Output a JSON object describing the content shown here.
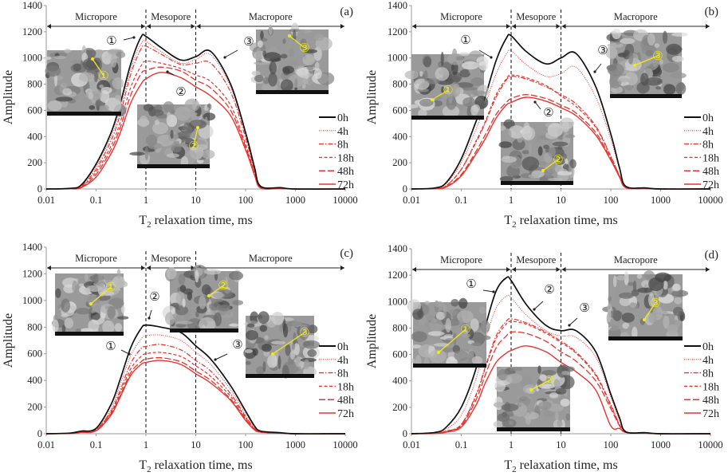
{
  "colors": {
    "control": "#111111",
    "treated": "#e8332f",
    "inset_marker": "#f2e81c",
    "axis": "#888888"
  },
  "chart_data": [
    {
      "type": "line",
      "panel_label": "(a)",
      "xscale": "log",
      "xlim": [
        0.01,
        10000
      ],
      "ylim": [
        0,
        1400
      ],
      "xticks": [
        "0.01",
        "0.1",
        "1",
        "10",
        "100",
        "1000",
        "10000"
      ],
      "yticks": [
        "0",
        "200",
        "400",
        "600",
        "800",
        "1000",
        "1200",
        "1400"
      ],
      "xlabel": {
        "main": "T",
        "sub": "2",
        "rest": " relaxation time, ms"
      },
      "ylabel": "Amplitude",
      "regions": [
        {
          "label": "Micropore",
          "from": 0.01,
          "to": 1
        },
        {
          "label": "Mesopore",
          "from": 1,
          "to": 10
        },
        {
          "label": "Macropore",
          "from": 10,
          "to": 10000
        }
      ],
      "annotations": [
        "①",
        "②",
        "③"
      ],
      "inset_labels": [
        "①",
        "②",
        "③"
      ],
      "legend": "right",
      "x": [
        0.01,
        0.03,
        0.05,
        0.1,
        0.2,
        0.3,
        0.5,
        0.8,
        1,
        2,
        5,
        10,
        20,
        50,
        100,
        150,
        200,
        500,
        1000,
        10000
      ],
      "series": [
        {
          "name": "0h",
          "values": [
            0,
            5,
            30,
            190,
            430,
            640,
            960,
            1160,
            1165,
            1080,
            985,
            1010,
            1050,
            800,
            430,
            170,
            20,
            10,
            0,
            0
          ]
        },
        {
          "name": "4h",
          "values": [
            0,
            4,
            25,
            170,
            400,
            600,
            920,
            1110,
            1125,
            1050,
            960,
            990,
            1025,
            780,
            415,
            160,
            18,
            8,
            0,
            0
          ]
        },
        {
          "name": "8h",
          "values": [
            0,
            3,
            20,
            150,
            370,
            560,
            880,
            1070,
            1090,
            1030,
            950,
            960,
            960,
            740,
            390,
            150,
            15,
            6,
            0,
            0
          ]
        },
        {
          "name": "18h",
          "values": [
            0,
            2,
            15,
            130,
            330,
            500,
            780,
            940,
            975,
            960,
            920,
            870,
            820,
            640,
            340,
            130,
            12,
            5,
            0,
            0
          ]
        },
        {
          "name": "48h",
          "values": [
            0,
            2,
            12,
            110,
            300,
            460,
            720,
            880,
            905,
            930,
            900,
            830,
            770,
            600,
            320,
            120,
            10,
            4,
            0,
            0
          ]
        },
        {
          "name": "72h",
          "values": [
            0,
            1,
            10,
            90,
            270,
            420,
            660,
            800,
            840,
            890,
            850,
            780,
            710,
            560,
            300,
            110,
            8,
            3,
            0,
            0
          ]
        }
      ]
    },
    {
      "type": "line",
      "panel_label": "(b)",
      "xscale": "log",
      "xlim": [
        0.01,
        10000
      ],
      "ylim": [
        0,
        1400
      ],
      "xticks": [
        "0.01",
        "0.1",
        "1",
        "10",
        "100",
        "1000",
        "10000"
      ],
      "yticks": [
        "0",
        "200",
        "400",
        "600",
        "800",
        "1000",
        "1200",
        "1400"
      ],
      "xlabel": {
        "main": "T",
        "sub": "2",
        "rest": " relaxation time, ms"
      },
      "ylabel": "Amplitude",
      "regions": [
        {
          "label": "Micropore",
          "from": 0.01,
          "to": 1
        },
        {
          "label": "Mesopore",
          "from": 1,
          "to": 10
        },
        {
          "label": "Macropore",
          "from": 10,
          "to": 10000
        }
      ],
      "annotations": [
        "①",
        "②",
        "③"
      ],
      "inset_labels": [
        "①",
        "②",
        "③"
      ],
      "legend": "right",
      "x": [
        0.01,
        0.03,
        0.05,
        0.1,
        0.2,
        0.3,
        0.5,
        0.8,
        1,
        2,
        5,
        10,
        20,
        50,
        100,
        150,
        200,
        500,
        1000,
        10000
      ],
      "series": [
        {
          "name": "0h",
          "values": [
            0,
            8,
            50,
            230,
            520,
            700,
            980,
            1150,
            1170,
            1050,
            955,
            1000,
            1035,
            780,
            420,
            160,
            20,
            8,
            0,
            0
          ]
        },
        {
          "name": "4h",
          "values": [
            0,
            6,
            40,
            200,
            460,
            640,
            880,
            1030,
            1055,
            950,
            860,
            880,
            930,
            700,
            380,
            150,
            18,
            6,
            0,
            0
          ]
        },
        {
          "name": "8h",
          "values": [
            0,
            4,
            25,
            150,
            360,
            500,
            700,
            830,
            860,
            840,
            780,
            720,
            650,
            480,
            250,
            100,
            12,
            4,
            0,
            0
          ]
        },
        {
          "name": "18h",
          "values": [
            0,
            4,
            25,
            150,
            370,
            510,
            720,
            840,
            870,
            850,
            790,
            710,
            630,
            470,
            245,
            100,
            12,
            4,
            0,
            0
          ]
        },
        {
          "name": "48h",
          "values": [
            0,
            3,
            18,
            110,
            290,
            410,
            570,
            660,
            690,
            720,
            690,
            640,
            580,
            430,
            230,
            95,
            10,
            3,
            0,
            0
          ]
        },
        {
          "name": "72h",
          "values": [
            0,
            2,
            15,
            100,
            270,
            380,
            540,
            640,
            660,
            700,
            670,
            620,
            560,
            410,
            220,
            90,
            10,
            3,
            0,
            0
          ]
        }
      ]
    },
    {
      "type": "line",
      "panel_label": "(c)",
      "xscale": "log",
      "xlim": [
        0.01,
        10000
      ],
      "ylim": [
        0,
        1400
      ],
      "xticks": [
        "0.01",
        "0.1",
        "1",
        "10",
        "100",
        "1000",
        "10000"
      ],
      "yticks": [
        "0",
        "200",
        "400",
        "600",
        "800",
        "1000",
        "1200",
        "1400"
      ],
      "xlabel": {
        "main": "T",
        "sub": "2",
        "rest": " relaxation time, ms"
      },
      "ylabel": "Amplitude",
      "regions": [
        {
          "label": "Micropore",
          "from": 0.01,
          "to": 1
        },
        {
          "label": "Mesopore",
          "from": 1,
          "to": 10
        },
        {
          "label": "Macropore",
          "from": 10,
          "to": 10000
        }
      ],
      "annotations": [
        "①",
        "②",
        "③"
      ],
      "inset_labels": [
        "①",
        "②",
        "③"
      ],
      "legend": "right",
      "x": [
        0.01,
        0.03,
        0.05,
        0.1,
        0.2,
        0.3,
        0.5,
        0.8,
        1,
        2,
        5,
        10,
        20,
        50,
        100,
        150,
        200,
        500,
        1000,
        10000
      ],
      "series": [
        {
          "name": "0h",
          "values": [
            0,
            5,
            20,
            40,
            220,
            400,
            650,
            790,
            815,
            800,
            760,
            660,
            560,
            360,
            170,
            60,
            20,
            8,
            0,
            0
          ]
        },
        {
          "name": "4h",
          "values": [
            0,
            4,
            18,
            35,
            190,
            360,
            590,
            710,
            735,
            740,
            700,
            610,
            520,
            330,
            150,
            50,
            18,
            6,
            0,
            0
          ]
        },
        {
          "name": "8h",
          "values": [
            0,
            3,
            15,
            30,
            170,
            320,
            530,
            640,
            655,
            670,
            630,
            550,
            470,
            300,
            130,
            40,
            15,
            5,
            0,
            0
          ]
        },
        {
          "name": "18h",
          "values": [
            0,
            3,
            12,
            28,
            160,
            300,
            490,
            580,
            600,
            610,
            580,
            510,
            430,
            280,
            120,
            35,
            14,
            5,
            0,
            0
          ]
        },
        {
          "name": "48h",
          "values": [
            0,
            2,
            10,
            25,
            150,
            280,
            460,
            540,
            560,
            570,
            540,
            470,
            400,
            260,
            110,
            30,
            12,
            4,
            0,
            0
          ]
        },
        {
          "name": "72h",
          "values": [
            0,
            2,
            10,
            22,
            140,
            270,
            440,
            520,
            535,
            550,
            520,
            450,
            380,
            250,
            100,
            30,
            12,
            4,
            0,
            0
          ]
        }
      ]
    },
    {
      "type": "line",
      "panel_label": "(d)",
      "xscale": "log",
      "xlim": [
        0.01,
        10000
      ],
      "ylim": [
        0,
        1400
      ],
      "xticks": [
        "0.01",
        "0.1",
        "1",
        "10",
        "100",
        "1000",
        "10000"
      ],
      "yticks": [
        "0",
        "200",
        "400",
        "600",
        "800",
        "1000",
        "1200",
        "1400"
      ],
      "xlabel": {
        "main": "T",
        "sub": "2",
        "rest": " relaxation time, ms"
      },
      "ylabel": "Amplitude",
      "regions": [
        {
          "label": "Micropore",
          "from": 0.01,
          "to": 1
        },
        {
          "label": "Mesopore",
          "from": 1,
          "to": 10
        },
        {
          "label": "Macropore",
          "from": 10,
          "to": 10000
        }
      ],
      "annotations": [
        "①",
        "②",
        "③"
      ],
      "inset_labels": [
        "①",
        "②",
        "③"
      ],
      "legend": "right",
      "x": [
        0.01,
        0.03,
        0.05,
        0.1,
        0.2,
        0.3,
        0.5,
        0.8,
        1,
        2,
        5,
        10,
        20,
        50,
        100,
        150,
        200,
        500,
        1000,
        10000
      ],
      "series": [
        {
          "name": "0h",
          "values": [
            0,
            10,
            50,
            200,
            500,
            800,
            1080,
            1180,
            1160,
            980,
            820,
            780,
            780,
            620,
            300,
            120,
            15,
            8,
            0,
            0
          ]
        },
        {
          "name": "4h",
          "values": [
            0,
            8,
            35,
            140,
            420,
            700,
            950,
            1040,
            1030,
            900,
            780,
            740,
            730,
            580,
            280,
            100,
            14,
            6,
            0,
            0
          ]
        },
        {
          "name": "8h",
          "values": [
            0,
            4,
            20,
            70,
            300,
            500,
            740,
            850,
            870,
            840,
            770,
            700,
            620,
            450,
            220,
            70,
            12,
            5,
            0,
            0
          ]
        },
        {
          "name": "18h",
          "values": [
            0,
            4,
            20,
            70,
            290,
            490,
            720,
            830,
            850,
            830,
            760,
            690,
            610,
            440,
            210,
            65,
            12,
            5,
            0,
            0
          ]
        },
        {
          "name": "48h",
          "values": [
            0,
            3,
            15,
            60,
            260,
            440,
            650,
            740,
            770,
            760,
            700,
            620,
            550,
            400,
            190,
            60,
            10,
            4,
            0,
            0
          ]
        },
        {
          "name": "72h",
          "values": [
            0,
            2,
            12,
            50,
            220,
            380,
            540,
            610,
            630,
            665,
            620,
            540,
            470,
            330,
            60,
            40,
            10,
            4,
            0,
            0
          ]
        }
      ]
    }
  ]
}
